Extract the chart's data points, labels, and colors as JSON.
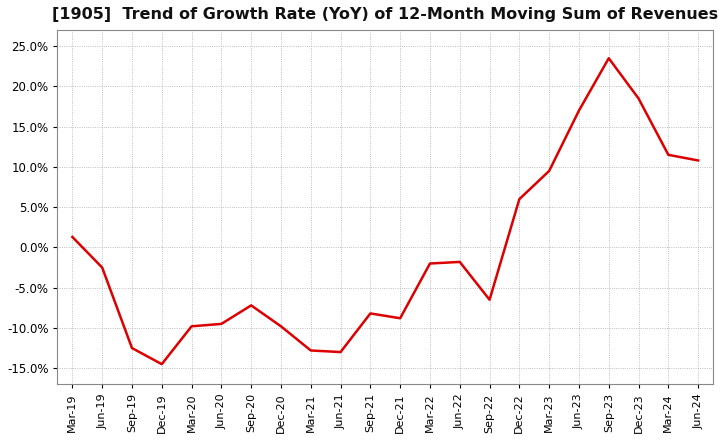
{
  "title": "[1905]  Trend of Growth Rate (YoY) of 12-Month Moving Sum of Revenues",
  "title_fontsize": 11.5,
  "line_color": "#dd0000",
  "background_color": "#ffffff",
  "grid_color": "#aaaaaa",
  "ylim": [
    -0.17,
    0.27
  ],
  "yticks": [
    -0.15,
    -0.1,
    -0.05,
    0.0,
    0.05,
    0.1,
    0.15,
    0.2,
    0.25
  ],
  "xlabels": [
    "Mar-19",
    "Jun-19",
    "Sep-19",
    "Dec-19",
    "Mar-20",
    "Jun-20",
    "Sep-20",
    "Dec-20",
    "Mar-21",
    "Jun-21",
    "Sep-21",
    "Dec-21",
    "Mar-22",
    "Jun-22",
    "Sep-22",
    "Dec-22",
    "Mar-23",
    "Jun-23",
    "Sep-23",
    "Dec-23",
    "Mar-24",
    "Jun-24"
  ],
  "values": [
    0.013,
    -0.025,
    -0.125,
    -0.145,
    -0.098,
    -0.095,
    -0.072,
    -0.098,
    -0.128,
    -0.13,
    -0.082,
    -0.088,
    -0.02,
    -0.018,
    -0.065,
    0.06,
    0.095,
    0.17,
    0.235,
    0.185,
    0.115,
    0.108
  ]
}
